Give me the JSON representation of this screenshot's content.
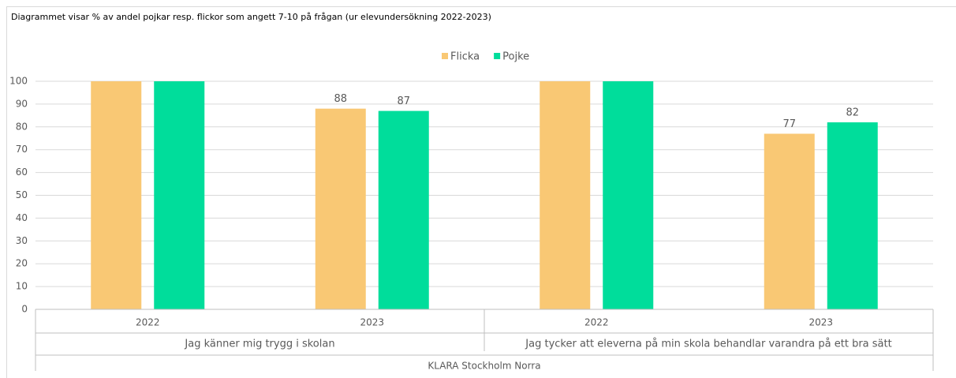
{
  "chart_data": {
    "type": "bar",
    "title": "Diagrammet visar % av andel pojkar resp. flickor som angett 7-10 på frågan (ur elevundersökning 2022-2023)",
    "categories": [
      "2022",
      "2023",
      "2022",
      "2023"
    ],
    "groups": [
      "Jag känner mig trygg i skolan",
      "Jag tycker att eleverna på min skola behandlar varandra på ett bra sätt"
    ],
    "super_category": "KLARA Stockholm Norra",
    "series": [
      {
        "name": "Flicka",
        "color": "#f9c874",
        "values": [
          100,
          88,
          100,
          77
        ],
        "value_labels": [
          null,
          "88",
          null,
          "77"
        ]
      },
      {
        "name": "Pojke",
        "color": "#00dd9b",
        "values": [
          100,
          87,
          100,
          82
        ],
        "value_labels": [
          null,
          "87",
          null,
          "82"
        ]
      }
    ],
    "ylim": [
      0,
      100
    ],
    "yticks": [
      0,
      10,
      20,
      30,
      40,
      50,
      60,
      70,
      80,
      90,
      100
    ],
    "grid": true,
    "legend": "top"
  }
}
